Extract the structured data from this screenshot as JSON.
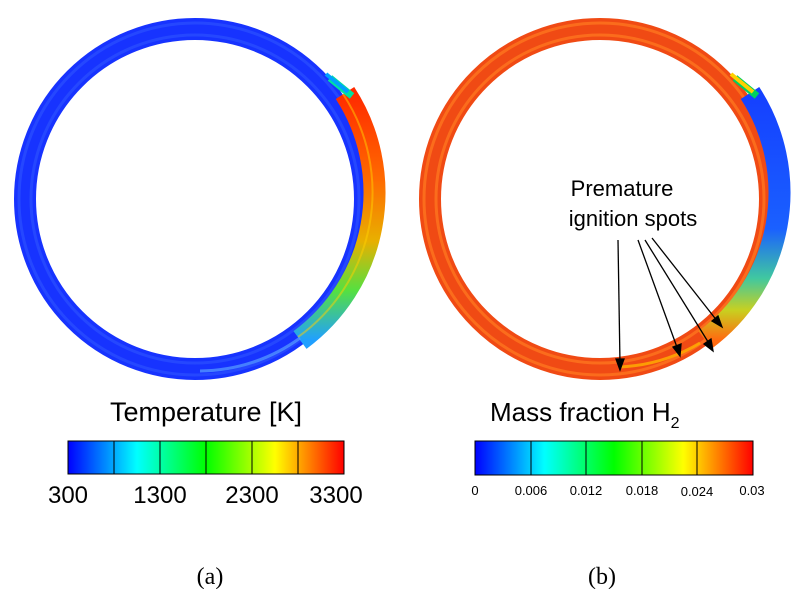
{
  "panels": {
    "a": {
      "label": "(a)",
      "colorbar": {
        "title": "Temperature [K]",
        "ticks": [
          "300",
          "1300",
          "2300",
          "3300"
        ]
      }
    },
    "b": {
      "label": "(b)",
      "colorbar": {
        "title": "Mass fraction H",
        "title_subscript": "2",
        "ticks": [
          "0",
          "0.006",
          "0.012",
          "0.018",
          "0.024",
          "0.03"
        ]
      },
      "annotation": {
        "line1": "Premature",
        "line2": "ignition spots"
      }
    }
  },
  "colors": {
    "low": "#0000ff",
    "cyan": "#00ffff",
    "green": "#00ff00",
    "yellow": "#ffff00",
    "high": "#ff0000",
    "ring_a_base": "#1a3fff",
    "ring_b_base": "#f24a12"
  }
}
